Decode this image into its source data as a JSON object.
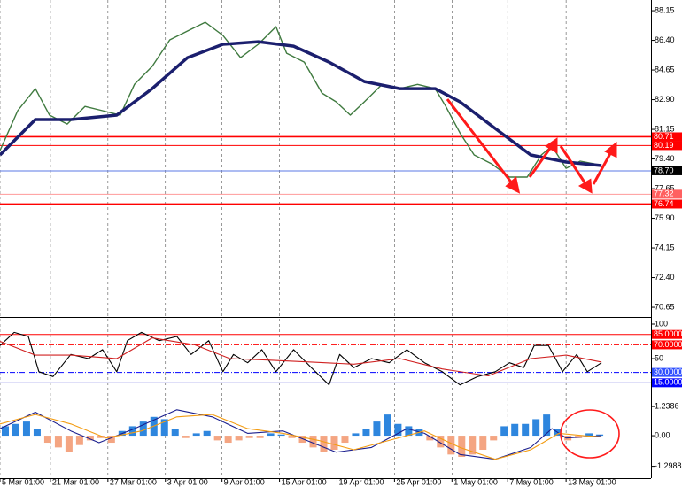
{
  "chart_data": [
    {
      "type": "line",
      "xlim": [
        0,
        184
      ],
      "xticks": [
        {
          "value": 0,
          "label": "5 Mar 01:00"
        },
        {
          "value": 14.25,
          "label": "21 Mar 01:00"
        },
        {
          "value": 30.5,
          "label": "27 Mar 01:00"
        },
        {
          "value": 46.75,
          "label": "3 Apr 01:00"
        },
        {
          "value": 62.75,
          "label": "9 Apr 01:00"
        },
        {
          "value": 79,
          "label": "15 Apr 01:00"
        },
        {
          "value": 95.25,
          "label": "19 Apr 01:00"
        },
        {
          "value": 111.5,
          "label": "25 Apr 01:00"
        },
        {
          "value": 127.75,
          "label": "1 May 01:00"
        },
        {
          "value": 143.5,
          "label": "7 May 01:00"
        },
        {
          "value": 160,
          "label": "13 May 01:00"
        }
      ],
      "ylim": [
        70.13,
        88.78
      ],
      "yticks": [
        88.15,
        {
          "value": 86.4,
          "label": "86.40"
        },
        84.65,
        {
          "value": 82.9,
          "label": "82.90"
        },
        81.15,
        {
          "value": 79.4,
          "label": "79.40"
        },
        77.65,
        {
          "value": 75.9,
          "label": "75.90"
        },
        74.15,
        {
          "value": 72.4,
          "label": "72.40"
        },
        70.65
      ],
      "levels": [
        80.71,
        80.19,
        {
          "value": 78.7,
          "label": "78.70"
        },
        77.32,
        76.74
      ],
      "level_colors": [
        "#ff0000",
        "#ff0000",
        "#5b78e6",
        "#ff9a9a",
        "#ff0000"
      ],
      "level_label_colors": [
        "#ff0000",
        "#ff0000",
        "#000000",
        "#ff6060",
        "#ff0000"
      ],
      "series": [
        {
          "color": "#3f7a3f",
          "x": [
            0,
            5,
            10,
            14,
            19,
            24,
            29,
            34,
            38,
            43,
            48,
            53,
            58,
            63,
            68,
            73,
            78,
            81,
            86,
            91,
            95,
            99,
            103,
            108,
            113,
            118,
            123,
            126,
            130,
            134,
            139,
            144,
            149,
            153,
            156,
            160,
            164,
            168
          ],
          "values": [
            79.9,
            82.25,
            83.55,
            81.99,
            81.46,
            82.5,
            82.25,
            81.99,
            83.8,
            84.86,
            86.43,
            86.95,
            87.47,
            86.69,
            85.38,
            86.17,
            87.21,
            85.64,
            85.12,
            83.29,
            82.77,
            81.99,
            82.77,
            83.8,
            83.55,
            83.8,
            83.55,
            82.5,
            80.94,
            79.64,
            79.11,
            78.33,
            78.33,
            79.64,
            80.16,
            78.85,
            79.27,
            79.11
          ]
        },
        {
          "color": "#1b1f6e",
          "x": [
            0,
            10,
            20,
            33,
            43,
            53,
            63,
            73,
            83,
            93,
            103,
            113,
            123,
            130,
            140,
            150,
            160,
            170
          ],
          "values": [
            79.64,
            81.73,
            81.73,
            81.99,
            83.55,
            85.38,
            86.17,
            86.32,
            86.06,
            85.12,
            83.97,
            83.55,
            83.55,
            82.77,
            81.2,
            79.64,
            79.22,
            79.01
          ]
        }
      ]
    },
    {
      "type": "line",
      "xlim": [
        0,
        184
      ],
      "ylim": [
        -5.1,
        107.7
      ],
      "yticks": [
        100,
        50
      ],
      "levels": [
        {
          "value": 85,
          "label": "85.0000"
        },
        {
          "value": 70,
          "label": "70.0000"
        },
        {
          "value": 30,
          "label": "30.0000"
        },
        {
          "value": 15,
          "label": "15.0000"
        }
      ],
      "level_colors": [
        "#ff0000",
        "#ff0000",
        "#0000ff",
        "#0000cc"
      ],
      "level_label_colors": [
        "#ff0000",
        "#ff0000",
        "#3050ff",
        "#0000ff"
      ],
      "series": [
        {
          "color": "#000000",
          "x": [
            0,
            4,
            8,
            11,
            15,
            20,
            25,
            29,
            33,
            36,
            40,
            45,
            50,
            54,
            59,
            63,
            66,
            70,
            74,
            78,
            83,
            88,
            93,
            96,
            100,
            105,
            110,
            115,
            120,
            125,
            130,
            135,
            140,
            144,
            148,
            151,
            155,
            159,
            163,
            166,
            170
          ],
          "values": [
            69,
            88,
            82,
            31,
            24,
            56,
            50,
            63,
            31,
            76,
            88,
            76,
            82,
            56,
            76,
            31,
            56,
            44,
            63,
            31,
            63,
            37,
            12,
            56,
            37,
            50,
            44,
            63,
            44,
            31,
            12,
            24,
            31,
            44,
            37,
            69,
            69,
            31,
            56,
            31,
            44
          ]
        },
        {
          "color": "#d02020",
          "x": [
            0,
            10,
            20,
            33,
            43,
            55,
            65,
            75,
            88,
            100,
            113,
            125,
            138,
            150,
            160,
            170
          ],
          "values": [
            75,
            55,
            55,
            50,
            80,
            70,
            50,
            48,
            45,
            42,
            50,
            35,
            25,
            50,
            55,
            45
          ]
        }
      ]
    },
    {
      "type": "bar",
      "xlim": [
        0,
        184
      ],
      "ylim": [
        -1.765,
        1.544
      ],
      "yticks": [
        1.2386,
        {
          "value": 0,
          "label": "0.00"
        },
        -1.2988
      ],
      "series": [
        {
          "color": "#2e86de",
          "negative_color": "#f4a582",
          "x": [
            1.5,
            4.5,
            7.5,
            10.5,
            13.5,
            16.5,
            19.5,
            22.5,
            25.5,
            28.5,
            31.5,
            34.5,
            37.5,
            40.5,
            43.5,
            46.5,
            49.5,
            52.5,
            55.5,
            58.5,
            61.5,
            64.5,
            67.5,
            70.5,
            73.5,
            76.5,
            79.5,
            82.5,
            85.5,
            88.5,
            91.5,
            94.5,
            97.5,
            100.5,
            103.5,
            106.5,
            109.5,
            112.5,
            115.5,
            118.5,
            121.5,
            124.5,
            127.5,
            130.5,
            133.5,
            136.5,
            139.5,
            142.5,
            145.5,
            148.5,
            151.5,
            154.5,
            157.5,
            160.5,
            163.5,
            166.5,
            169.5
          ],
          "values": [
            0.4,
            0.5,
            0.6,
            0.3,
            -0.3,
            -0.5,
            -0.7,
            -0.4,
            -0.2,
            -0.1,
            -0.3,
            0.2,
            0.4,
            0.6,
            0.8,
            0.7,
            0.3,
            -0.1,
            0.1,
            0.2,
            -0.2,
            -0.3,
            -0.2,
            -0.1,
            -0.1,
            0.1,
            0.05,
            -0.1,
            -0.3,
            -0.5,
            -0.7,
            -0.6,
            -0.3,
            0.1,
            0.3,
            0.6,
            0.9,
            0.5,
            0.4,
            0.3,
            -0.2,
            -0.5,
            -0.8,
            -0.9,
            -0.8,
            -0.6,
            -0.2,
            0.4,
            0.5,
            0.5,
            0.7,
            0.9,
            0.3,
            -0.2,
            -0.1,
            0.1,
            0.05
          ]
        },
        {
          "type": "line",
          "color": "#1b1f8e",
          "x": [
            0,
            10,
            20,
            28,
            38,
            50,
            60,
            70,
            80,
            90,
            95,
            105,
            115,
            120,
            130,
            140,
            150,
            156,
            160,
            170
          ],
          "values": [
            0.3,
            1.0,
            0.2,
            -0.3,
            0.3,
            1.1,
            0.8,
            0.1,
            0.2,
            -0.4,
            -0.7,
            -0.5,
            0.3,
            0.1,
            -0.8,
            -1.0,
            -0.5,
            0.3,
            -0.1,
            0.0
          ]
        },
        {
          "type": "line",
          "color": "#f39c12",
          "x": [
            0,
            10,
            20,
            30,
            40,
            50,
            60,
            70,
            80,
            90,
            100,
            110,
            120,
            130,
            140,
            150,
            158,
            165,
            170
          ],
          "values": [
            0.5,
            0.9,
            0.5,
            -0.1,
            0.2,
            0.8,
            0.9,
            0.3,
            0.1,
            -0.2,
            -0.6,
            -0.2,
            0.2,
            -0.5,
            -1.0,
            -0.6,
            0.1,
            0.0,
            -0.05
          ]
        }
      ]
    }
  ]
}
